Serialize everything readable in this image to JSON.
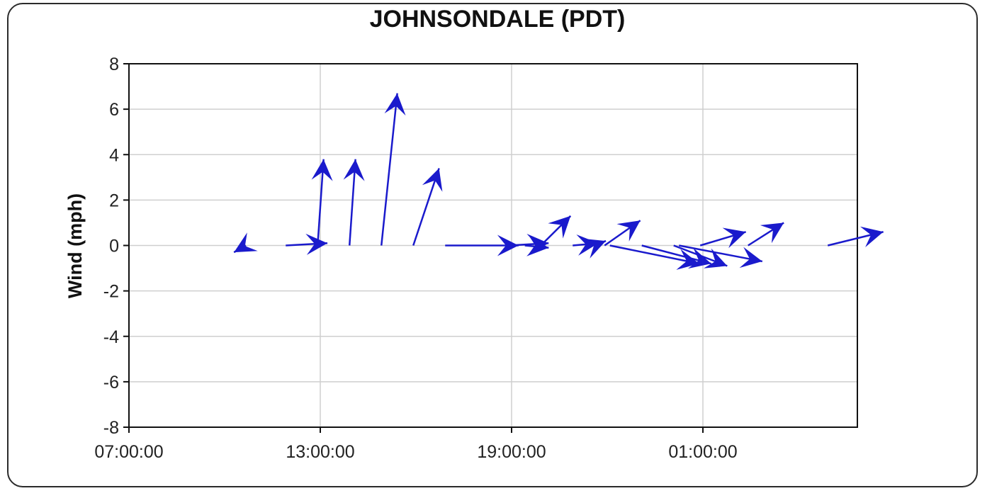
{
  "chart_data": {
    "type": "quiver",
    "title": "JOHNSONDALE (PDT)",
    "xlabel": "",
    "ylabel": "Wind (mph)",
    "x_ticks": [
      "07:00:00",
      "13:00:00",
      "19:00:00",
      "01:00:00"
    ],
    "y_ticks": [
      8,
      6,
      4,
      2,
      0,
      -2,
      -4,
      -6,
      -8
    ],
    "ylim": [
      -8,
      8
    ],
    "grid": true,
    "arrow_color": "#1a1acc",
    "vectors": [
      {
        "x": "10:40",
        "u": -0.6,
        "v": -0.3
      },
      {
        "x": "11:55",
        "u": 2.1,
        "v": 0.1
      },
      {
        "x": "12:55",
        "u": 0.3,
        "v": 3.8
      },
      {
        "x": "13:55",
        "u": 0.3,
        "v": 3.8
      },
      {
        "x": "14:55",
        "u": 0.8,
        "v": 6.7
      },
      {
        "x": "15:55",
        "u": 1.3,
        "v": 3.4
      },
      {
        "x": "16:55",
        "u": 3.7,
        "v": 0.0
      },
      {
        "x": "18:55",
        "u": 2.0,
        "v": 0.1
      },
      {
        "x": "19:25",
        "u": 1.2,
        "v": -0.1
      },
      {
        "x": "19:55",
        "u": 1.5,
        "v": 1.3
      },
      {
        "x": "20:55",
        "u": 1.3,
        "v": 0.1
      },
      {
        "x": "21:35",
        "u": 0.6,
        "v": 0.2
      },
      {
        "x": "21:55",
        "u": 1.8,
        "v": 1.1
      },
      {
        "x": "22:05",
        "u": 4.5,
        "v": -0.8
      },
      {
        "x": "23:05",
        "u": 3.5,
        "v": -0.8
      },
      {
        "x": "00:05",
        "u": 2.7,
        "v": -0.9
      },
      {
        "x": "00:15",
        "u": 4.2,
        "v": -0.7
      },
      {
        "x": "00:55",
        "u": 2.3,
        "v": 0.6
      },
      {
        "x": "02:25",
        "u": 1.8,
        "v": 1.0
      },
      {
        "x": "04:55",
        "u": 2.8,
        "v": 0.6
      }
    ]
  }
}
